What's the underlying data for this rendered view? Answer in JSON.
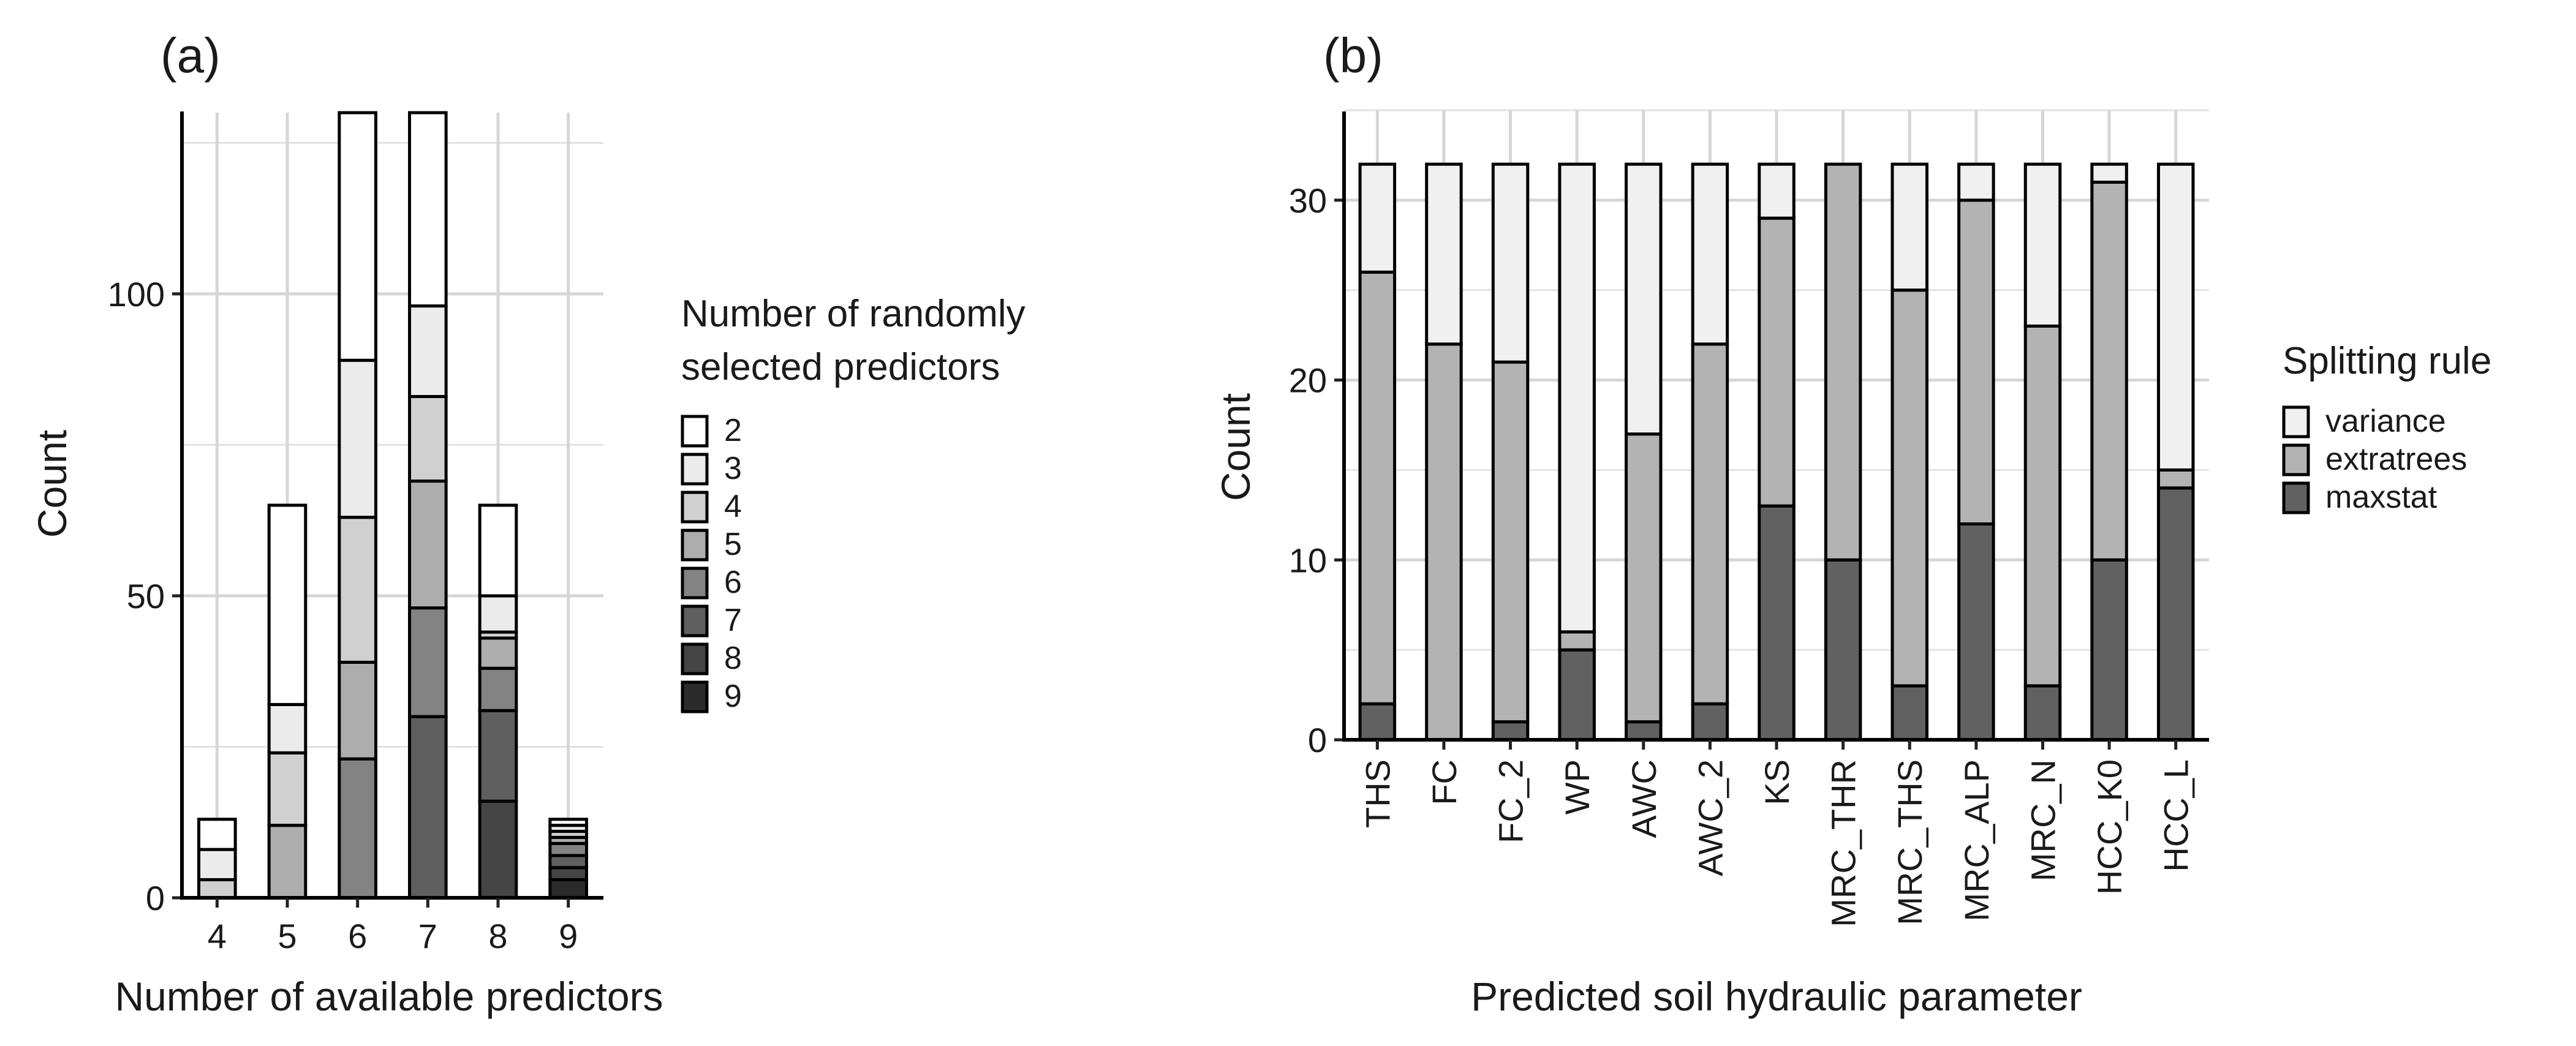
{
  "chart_data": [
    {
      "type": "bar",
      "stacked": true,
      "panel_label": "(a)",
      "xlabel": "Number of available predictors",
      "ylabel": "Count",
      "categories": [
        "4",
        "5",
        "6",
        "7",
        "8",
        "9"
      ],
      "ylim": [
        0,
        130
      ],
      "yticks": [
        0,
        50,
        100
      ],
      "grid": true,
      "legend_title": "Number of randomly selected predictors",
      "legend_title_lines": [
        "Number of randomly",
        "selected predictors"
      ],
      "legend_position": "right",
      "series": [
        {
          "name": "9",
          "values": [
            0,
            0,
            0,
            0,
            0,
            3
          ],
          "color": "#2b2b2b"
        },
        {
          "name": "8",
          "values": [
            0,
            0,
            0,
            0,
            16,
            2
          ],
          "color": "#454545"
        },
        {
          "name": "7",
          "values": [
            0,
            0,
            0,
            30,
            15,
            2
          ],
          "color": "#5f5f5f"
        },
        {
          "name": "6",
          "values": [
            0,
            0,
            23,
            18,
            7,
            2
          ],
          "color": "#838383"
        },
        {
          "name": "5",
          "values": [
            0,
            12,
            16,
            21,
            5,
            1
          ],
          "color": "#adadad"
        },
        {
          "name": "4",
          "values": [
            3,
            12,
            24,
            14,
            1,
            1
          ],
          "color": "#d0d0d0"
        },
        {
          "name": "3",
          "values": [
            5,
            8,
            26,
            15,
            6,
            1
          ],
          "color": "#ebebeb"
        },
        {
          "name": "2",
          "values": [
            5,
            33,
            41,
            32,
            15,
            1
          ],
          "color": "#ffffff"
        }
      ]
    },
    {
      "type": "bar",
      "stacked": true,
      "panel_label": "(b)",
      "xlabel": "Predicted soil hydraulic parameter",
      "ylabel": "Count",
      "categories": [
        "THS",
        "FC",
        "FC_2",
        "WP",
        "AWC",
        "AWC_2",
        "KS",
        "MRC_THR",
        "MRC_THS",
        "MRC_ALP",
        "MRC_N",
        "HCC_K0",
        "HCC_L"
      ],
      "ylim": [
        0,
        35
      ],
      "yticks": [
        0,
        10,
        20,
        30
      ],
      "grid": true,
      "legend_title": "Splitting rule",
      "legend_position": "right",
      "series": [
        {
          "name": "maxstat",
          "values": [
            2,
            0,
            1,
            5,
            1,
            2,
            13,
            10,
            3,
            12,
            3,
            10,
            14
          ],
          "color": "#616161"
        },
        {
          "name": "extratrees",
          "values": [
            24,
            22,
            20,
            1,
            16,
            20,
            16,
            22,
            22,
            18,
            20,
            21,
            1
          ],
          "color": "#b3b3b3"
        },
        {
          "name": "variance",
          "values": [
            6,
            10,
            11,
            26,
            15,
            10,
            3,
            0,
            7,
            2,
            9,
            1,
            17
          ],
          "color": "#f0f0f0"
        }
      ]
    }
  ]
}
